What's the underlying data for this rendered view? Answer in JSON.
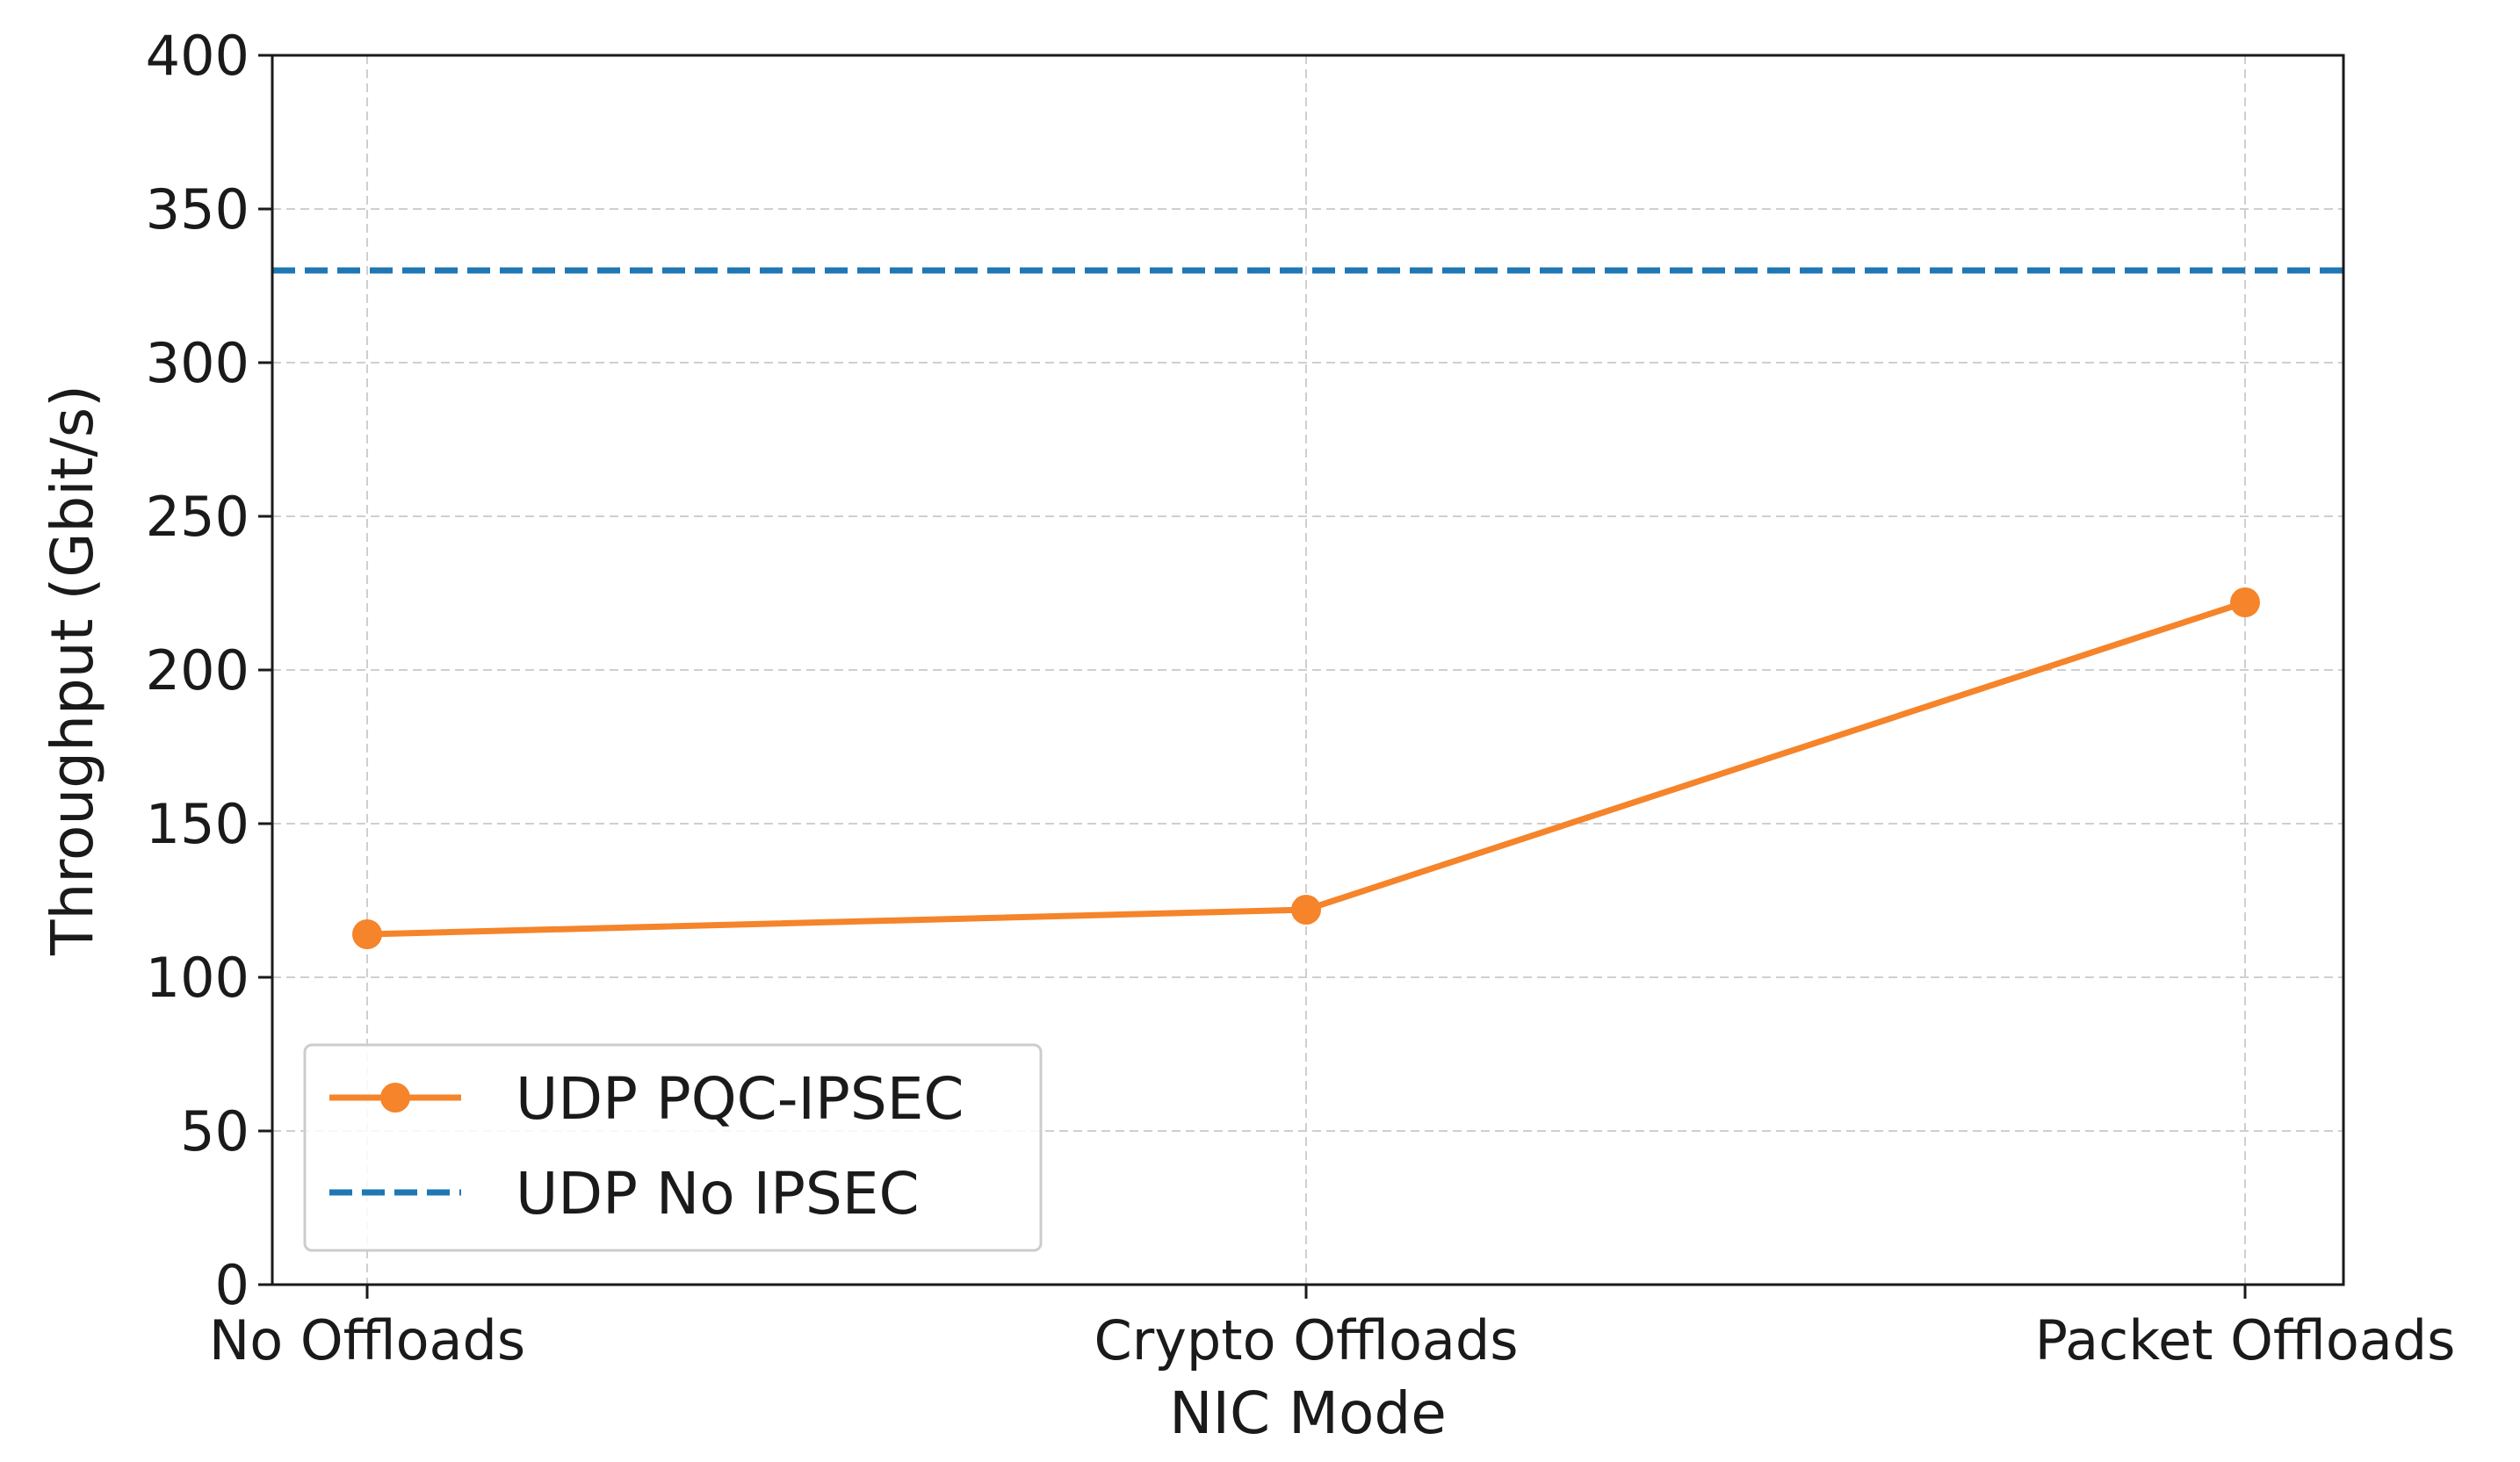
{
  "chart_data": {
    "type": "line",
    "title": "",
    "xlabel": "NIC Mode",
    "ylabel": "Throughput (Gbit/s)",
    "categories": [
      "No Offloads",
      "Crypto Offloads",
      "Packet Offloads"
    ],
    "ylim": [
      0,
      400
    ],
    "yticks": [
      0,
      50,
      100,
      150,
      200,
      250,
      300,
      350,
      400
    ],
    "grid": true,
    "legend_position": "lower-left",
    "series": [
      {
        "name": "UDP PQC-IPSEC",
        "values": [
          114,
          122,
          222
        ],
        "color": "#f5842a",
        "style": "solid",
        "marker": "circle"
      },
      {
        "name": "UDP No IPSEC",
        "values": [
          330,
          330,
          330
        ],
        "color": "#1f77b4",
        "style": "dashed",
        "marker": "none",
        "horizontal_line": true
      }
    ]
  }
}
